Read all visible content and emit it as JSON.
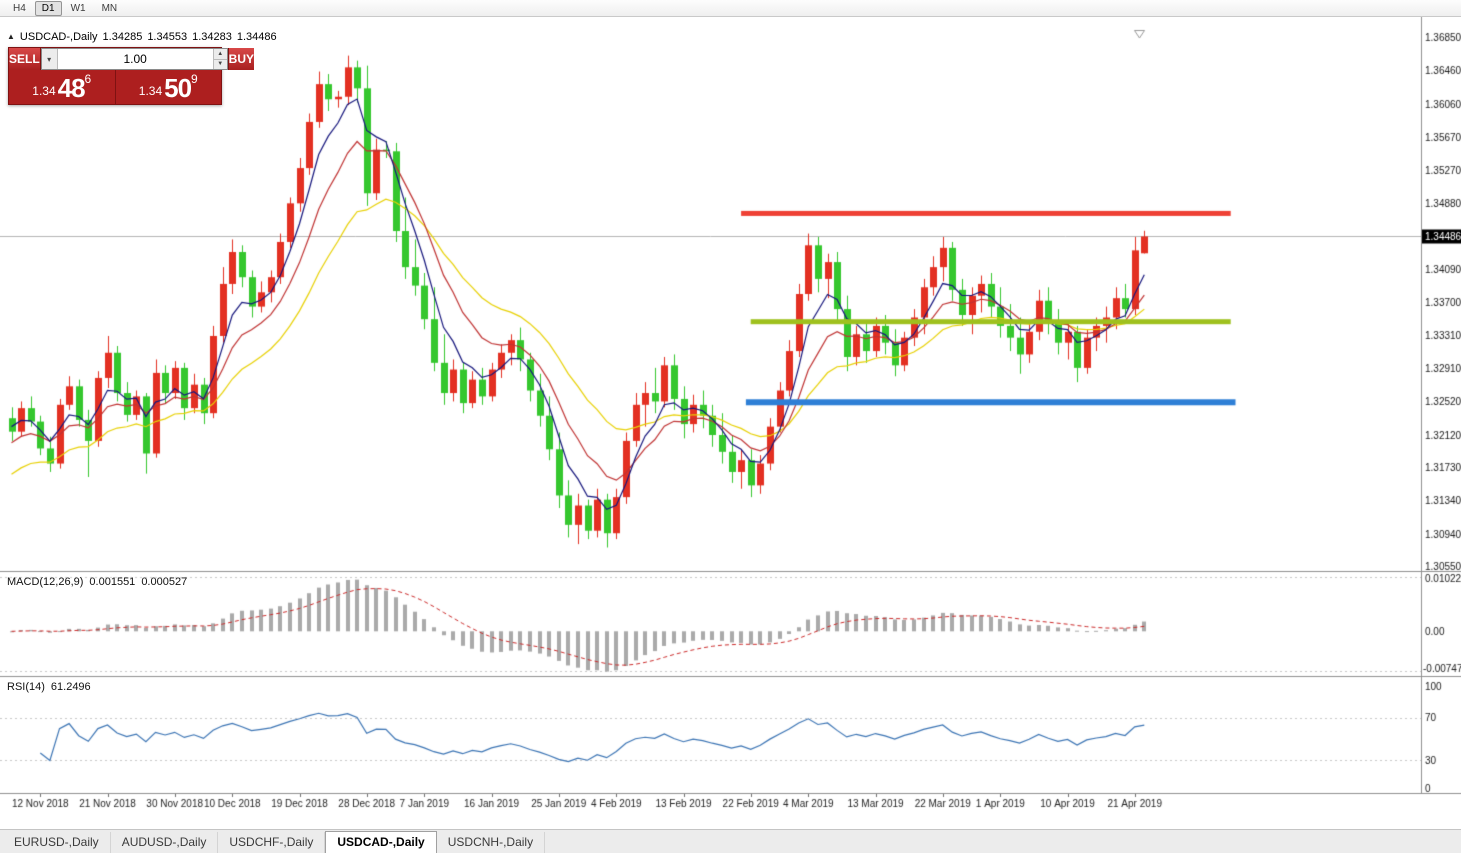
{
  "toolbar": {
    "timeframes": [
      {
        "label": "H4",
        "active": false
      },
      {
        "label": "D1",
        "active": true
      },
      {
        "label": "W1",
        "active": false
      },
      {
        "label": "MN",
        "active": false
      }
    ]
  },
  "chart_header": {
    "expander_icon": "▲",
    "symbol": "USDCAD-,Daily",
    "open": "1.34285",
    "high": "1.34553",
    "low": "1.34283",
    "close": "1.34486"
  },
  "trade_panel": {
    "sell_label": "SELL",
    "buy_label": "BUY",
    "volume_value": "1.00",
    "dropdown_icon": "▾",
    "spin_up_icon": "▲",
    "spin_down_icon": "▼",
    "sell_price_base": "1.34",
    "sell_price_big": "48",
    "sell_price_sup": "6",
    "buy_price_base": "1.34",
    "buy_price_big": "50",
    "buy_price_sup": "9"
  },
  "macd_header": {
    "label": "MACD(12,26,9)",
    "value": "0.001551",
    "signal_value": "0.000527"
  },
  "rsi_header": {
    "label": "RSI(14)",
    "value": "61.2496"
  },
  "tabs": [
    {
      "label": "EURUSD-,Daily",
      "active": false
    },
    {
      "label": "AUDUSD-,Daily",
      "active": false
    },
    {
      "label": "USDCHF-,Daily",
      "active": false
    },
    {
      "label": "USDCAD-,Daily",
      "active": true
    },
    {
      "label": "USDCNH-,Daily",
      "active": false
    }
  ],
  "chart_data": {
    "type": "candlestick",
    "symbol": "USDCAD-,Daily",
    "ohlc": [
      [
        1.3232,
        1.3245,
        1.3205,
        1.3216
      ],
      [
        1.3216,
        1.3252,
        1.321,
        1.3244
      ],
      [
        1.3244,
        1.3258,
        1.3222,
        1.3228
      ],
      [
        1.3228,
        1.3235,
        1.3188,
        1.3196
      ],
      [
        1.3196,
        1.321,
        1.3168,
        1.3178
      ],
      [
        1.3178,
        1.3255,
        1.3172,
        1.3248
      ],
      [
        1.3248,
        1.3282,
        1.3242,
        1.327
      ],
      [
        1.327,
        1.3278,
        1.3222,
        1.323
      ],
      [
        1.323,
        1.3242,
        1.3162,
        1.3205
      ],
      [
        1.3205,
        1.3288,
        1.3198,
        1.328
      ],
      [
        1.328,
        1.333,
        1.3268,
        1.331
      ],
      [
        1.331,
        1.3318,
        1.3252,
        1.3262
      ],
      [
        1.3262,
        1.3275,
        1.3228,
        1.3236
      ],
      [
        1.3236,
        1.3265,
        1.323,
        1.3258
      ],
      [
        1.3258,
        1.3262,
        1.3166,
        1.319
      ],
      [
        1.319,
        1.3302,
        1.3185,
        1.3286
      ],
      [
        1.3286,
        1.3295,
        1.325,
        1.3262
      ],
      [
        1.3262,
        1.33,
        1.3255,
        1.3292
      ],
      [
        1.3292,
        1.3298,
        1.323,
        1.3244
      ],
      [
        1.3244,
        1.3285,
        1.3238,
        1.3272
      ],
      [
        1.3272,
        1.328,
        1.3225,
        1.3238
      ],
      [
        1.3238,
        1.3342,
        1.3232,
        1.333
      ],
      [
        1.333,
        1.3412,
        1.3322,
        1.3392
      ],
      [
        1.3392,
        1.3445,
        1.338,
        1.343
      ],
      [
        1.343,
        1.3438,
        1.3388,
        1.34
      ],
      [
        1.34,
        1.3408,
        1.3352,
        1.3365
      ],
      [
        1.3365,
        1.3395,
        1.3358,
        1.3382
      ],
      [
        1.3382,
        1.3408,
        1.337,
        1.34
      ],
      [
        1.34,
        1.3452,
        1.3392,
        1.3442
      ],
      [
        1.3442,
        1.3495,
        1.3435,
        1.3488
      ],
      [
        1.3488,
        1.3542,
        1.3478,
        1.353
      ],
      [
        1.353,
        1.3595,
        1.3522,
        1.3585
      ],
      [
        1.3585,
        1.3645,
        1.3578,
        1.363
      ],
      [
        1.363,
        1.3642,
        1.3598,
        1.3612
      ],
      [
        1.3612,
        1.3622,
        1.3602,
        1.3615
      ],
      [
        1.3615,
        1.3664,
        1.3605,
        1.365
      ],
      [
        1.365,
        1.3658,
        1.3608,
        1.3625
      ],
      [
        1.3625,
        1.3652,
        1.3485,
        1.35
      ],
      [
        1.35,
        1.3565,
        1.3492,
        1.3552
      ],
      [
        1.3552,
        1.3562,
        1.3542,
        1.355
      ],
      [
        1.355,
        1.356,
        1.3442,
        1.3455
      ],
      [
        1.3455,
        1.3495,
        1.3398,
        1.3412
      ],
      [
        1.3412,
        1.3445,
        1.3378,
        1.339
      ],
      [
        1.339,
        1.3405,
        1.3338,
        1.335
      ],
      [
        1.335,
        1.3388,
        1.3288,
        1.3298
      ],
      [
        1.3298,
        1.3332,
        1.3248,
        1.3262
      ],
      [
        1.3262,
        1.3302,
        1.3252,
        1.329
      ],
      [
        1.329,
        1.3298,
        1.3238,
        1.325
      ],
      [
        1.325,
        1.3288,
        1.3244,
        1.3278
      ],
      [
        1.3278,
        1.3292,
        1.3248,
        1.3258
      ],
      [
        1.3258,
        1.3298,
        1.3252,
        1.329
      ],
      [
        1.329,
        1.332,
        1.328,
        1.331
      ],
      [
        1.331,
        1.3332,
        1.3295,
        1.3325
      ],
      [
        1.3325,
        1.334,
        1.3288,
        1.3302
      ],
      [
        1.3302,
        1.331,
        1.3252,
        1.3265
      ],
      [
        1.3265,
        1.3285,
        1.3222,
        1.3235
      ],
      [
        1.3235,
        1.3258,
        1.3182,
        1.3195
      ],
      [
        1.3195,
        1.3215,
        1.3125,
        1.314
      ],
      [
        1.314,
        1.3158,
        1.309,
        1.3105
      ],
      [
        1.3105,
        1.3142,
        1.3082,
        1.3128
      ],
      [
        1.3128,
        1.3135,
        1.3088,
        1.3098
      ],
      [
        1.3098,
        1.3148,
        1.309,
        1.3135
      ],
      [
        1.3135,
        1.3142,
        1.3078,
        1.3095
      ],
      [
        1.3095,
        1.3148,
        1.3088,
        1.3138
      ],
      [
        1.3138,
        1.3215,
        1.313,
        1.3205
      ],
      [
        1.3205,
        1.3262,
        1.3198,
        1.3248
      ],
      [
        1.3248,
        1.3275,
        1.3222,
        1.3262
      ],
      [
        1.3262,
        1.3292,
        1.3238,
        1.3252
      ],
      [
        1.3252,
        1.3305,
        1.3245,
        1.3295
      ],
      [
        1.3295,
        1.3308,
        1.3242,
        1.3255
      ],
      [
        1.3255,
        1.327,
        1.3208,
        1.3225
      ],
      [
        1.3225,
        1.326,
        1.3215,
        1.3248
      ],
      [
        1.3248,
        1.3265,
        1.322,
        1.3235
      ],
      [
        1.3235,
        1.3248,
        1.3198,
        1.3212
      ],
      [
        1.3212,
        1.3238,
        1.3178,
        1.3192
      ],
      [
        1.3192,
        1.3212,
        1.3155,
        1.3168
      ],
      [
        1.3168,
        1.3195,
        1.3148,
        1.3182
      ],
      [
        1.3182,
        1.3195,
        1.3138,
        1.3152
      ],
      [
        1.3152,
        1.3188,
        1.3142,
        1.3178
      ],
      [
        1.3178,
        1.3232,
        1.317,
        1.3222
      ],
      [
        1.3222,
        1.3275,
        1.3215,
        1.3265
      ],
      [
        1.3265,
        1.3325,
        1.3258,
        1.3312
      ],
      [
        1.3312,
        1.3392,
        1.3305,
        1.338
      ],
      [
        1.338,
        1.3452,
        1.3372,
        1.3438
      ],
      [
        1.3438,
        1.3448,
        1.3382,
        1.3398
      ],
      [
        1.3398,
        1.3428,
        1.3375,
        1.3418
      ],
      [
        1.3418,
        1.343,
        1.3348,
        1.3362
      ],
      [
        1.3362,
        1.3378,
        1.3288,
        1.3305
      ],
      [
        1.3305,
        1.3342,
        1.3295,
        1.3332
      ],
      [
        1.3332,
        1.3345,
        1.3298,
        1.3312
      ],
      [
        1.3312,
        1.3352,
        1.3305,
        1.3342
      ],
      [
        1.3342,
        1.3355,
        1.3308,
        1.3322
      ],
      [
        1.3322,
        1.3338,
        1.3282,
        1.3295
      ],
      [
        1.3295,
        1.3335,
        1.3288,
        1.3328
      ],
      [
        1.3328,
        1.3362,
        1.3318,
        1.3352
      ],
      [
        1.3352,
        1.3398,
        1.3332,
        1.3388
      ],
      [
        1.3388,
        1.3425,
        1.3378,
        1.3412
      ],
      [
        1.3412,
        1.3448,
        1.3395,
        1.3435
      ],
      [
        1.3435,
        1.3442,
        1.3372,
        1.3385
      ],
      [
        1.3385,
        1.3398,
        1.3342,
        1.3355
      ],
      [
        1.3355,
        1.3388,
        1.3332,
        1.3378
      ],
      [
        1.3378,
        1.3402,
        1.3358,
        1.3392
      ],
      [
        1.3392,
        1.3405,
        1.3352,
        1.3365
      ],
      [
        1.3365,
        1.3388,
        1.3328,
        1.3342
      ],
      [
        1.3342,
        1.3368,
        1.3312,
        1.3328
      ],
      [
        1.3328,
        1.3352,
        1.3285,
        1.3308
      ],
      [
        1.3308,
        1.3345,
        1.3298,
        1.3335
      ],
      [
        1.3335,
        1.3385,
        1.3325,
        1.3372
      ],
      [
        1.3372,
        1.3388,
        1.3332,
        1.3345
      ],
      [
        1.3345,
        1.3362,
        1.3308,
        1.3322
      ],
      [
        1.3322,
        1.3345,
        1.3302,
        1.3335
      ],
      [
        1.3335,
        1.3342,
        1.3275,
        1.3292
      ],
      [
        1.3292,
        1.3338,
        1.3285,
        1.3328
      ],
      [
        1.3328,
        1.3352,
        1.3312,
        1.3342
      ],
      [
        1.3342,
        1.3365,
        1.3322,
        1.3352
      ],
      [
        1.3352,
        1.3388,
        1.3338,
        1.3375
      ],
      [
        1.3375,
        1.3392,
        1.3352,
        1.3362
      ],
      [
        1.3362,
        1.3448,
        1.3355,
        1.3432
      ],
      [
        1.34285,
        1.34553,
        1.34283,
        1.34486
      ]
    ],
    "date_ticks": [
      {
        "label": "12 Nov 2018",
        "index": 3
      },
      {
        "label": "21 Nov 2018",
        "index": 10
      },
      {
        "label": "30 Nov 2018",
        "index": 17
      },
      {
        "label": "10 Dec 2018",
        "index": 23
      },
      {
        "label": "19 Dec 2018",
        "index": 30
      },
      {
        "label": "28 Dec 2018",
        "index": 37
      },
      {
        "label": "7 Jan 2019",
        "index": 43
      },
      {
        "label": "16 Jan 2019",
        "index": 50
      },
      {
        "label": "25 Jan 2019",
        "index": 57
      },
      {
        "label": "4 Feb 2019",
        "index": 63
      },
      {
        "label": "13 Feb 2019",
        "index": 70
      },
      {
        "label": "22 Feb 2019",
        "index": 77
      },
      {
        "label": "4 Mar 2019",
        "index": 83
      },
      {
        "label": "13 Mar 2019",
        "index": 90
      },
      {
        "label": "22 Mar 2019",
        "index": 97
      },
      {
        "label": "1 Apr 2019",
        "index": 103
      },
      {
        "label": "10 Apr 2019",
        "index": 110
      },
      {
        "label": "21 Apr 2019",
        "index": 117
      }
    ],
    "y_axis": {
      "min": 1.305,
      "max": 1.371,
      "tick_labels": [
        "1.36850",
        "1.36460",
        "1.36060",
        "1.35670",
        "1.35270",
        "1.34880",
        "1.34090",
        "1.33700",
        "1.33310",
        "1.32910",
        "1.32520",
        "1.32120",
        "1.31730",
        "1.31340",
        "1.30940",
        "1.30550"
      ],
      "current_price": 1.34486,
      "current_price_label": "1.34486"
    },
    "moving_averages": [
      {
        "period": 20,
        "seed": 1.316,
        "color": "#e8d104"
      },
      {
        "period": 10,
        "seed": 1.32,
        "color": "#c03333"
      },
      {
        "period": 5,
        "seed": 1.3225,
        "color": "#16167d"
      }
    ],
    "levels": [
      {
        "name": "resistance-line",
        "price": 1.3476,
        "color": "#ef4135",
        "from_index": 76,
        "to_index": 127,
        "thickness": 5
      },
      {
        "name": "mid-line",
        "price": 1.3347,
        "color": "#9fc11e",
        "from_index": 77,
        "to_index": 127,
        "thickness": 5
      },
      {
        "name": "support-line",
        "price": 1.3251,
        "color": "#2e7fd6",
        "from_index": 76.5,
        "to_index": 127.5,
        "thickness": 6
      }
    ],
    "macd": {
      "fast": 12,
      "slow": 26,
      "signal": 9,
      "value": 0.001551,
      "signal_value": 0.000527,
      "axis_max": 0.010229,
      "axis_min": -0.007477,
      "axis_labels": [
        "0.010229",
        "0.00",
        "-0.007477"
      ],
      "histogram_color": "#aaaaaa",
      "signal_color": "#cc2a2a"
    },
    "rsi": {
      "period": 14,
      "value": 61.2496,
      "levels": [
        70,
        30
      ],
      "axis_labels": [
        "100",
        "70",
        "30",
        "0"
      ],
      "color": "#3b74b4"
    },
    "colors": {
      "up": "#e33022",
      "down": "#35c72e",
      "bg": "#ffffff",
      "axis_text": "#1a1a1a",
      "current_price_line": "#b4b4b4",
      "badge_bg": "#000000",
      "badge_text": "#ffffff",
      "separator": "#8f8f8f",
      "grid_dash": "#c8c8c8",
      "date_text": "#1f1f1f"
    },
    "shift_marker_index": 117.5
  }
}
